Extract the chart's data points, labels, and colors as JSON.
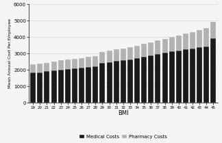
{
  "bmi": [
    19,
    20,
    21,
    22,
    23,
    24,
    25,
    26,
    27,
    28,
    29,
    30,
    31,
    32,
    33,
    34,
    35,
    36,
    37,
    38,
    39,
    40,
    41,
    42,
    43,
    44,
    45
  ],
  "medical": [
    1850,
    1870,
    1930,
    1990,
    2020,
    2060,
    2105,
    2145,
    2185,
    2225,
    2450,
    2490,
    2545,
    2590,
    2645,
    2705,
    2800,
    2870,
    2975,
    3065,
    3125,
    3165,
    3255,
    3315,
    3385,
    3445,
    3950
  ],
  "pharmacy": [
    510,
    510,
    520,
    540,
    560,
    570,
    580,
    600,
    620,
    640,
    660,
    680,
    700,
    720,
    740,
    760,
    780,
    800,
    820,
    840,
    870,
    950,
    980,
    1010,
    1050,
    1090,
    1000
  ],
  "medical_color": "#1a1a1a",
  "pharmacy_color": "#b2b2b2",
  "ylabel": "Mean Annual Cost Per Employee",
  "xlabel": "BMI",
  "ylim": [
    0,
    6000
  ],
  "yticks": [
    0,
    1000,
    2000,
    3000,
    4000,
    5000,
    6000
  ],
  "legend_labels": [
    "Medical Costs",
    "Pharmacy Costs"
  ],
  "background_color": "#f5f5f5",
  "edge_color": "#f5f5f5"
}
